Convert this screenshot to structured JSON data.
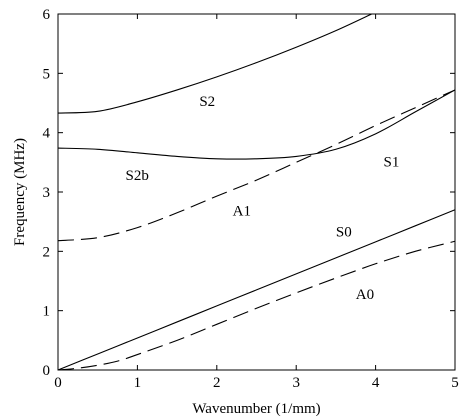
{
  "chart_data": {
    "type": "line",
    "xlabel": "Wavenumber (1/mm)",
    "ylabel": "Frequency (MHz)",
    "xlim": [
      0,
      5
    ],
    "ylim": [
      0,
      6
    ],
    "xticks": [
      "0",
      "1",
      "2",
      "3",
      "4",
      "5"
    ],
    "yticks": [
      "0",
      "1",
      "2",
      "3",
      "4",
      "5",
      "6"
    ],
    "grid": false,
    "line_color": "#000000",
    "series": [
      {
        "name": "S0",
        "dash": "solid",
        "x": [
          0,
          0.5,
          1,
          1.5,
          2,
          2.5,
          3,
          3.5,
          4,
          4.5,
          5
        ],
        "y": [
          0,
          0.27,
          0.54,
          0.81,
          1.08,
          1.35,
          1.62,
          1.89,
          2.16,
          2.43,
          2.7
        ]
      },
      {
        "name": "A0",
        "dash": "dashed",
        "x": [
          0,
          0.25,
          0.5,
          0.75,
          1,
          1.5,
          2,
          2.5,
          3,
          3.5,
          4,
          4.5,
          5
        ],
        "y": [
          0,
          0.03,
          0.08,
          0.15,
          0.26,
          0.5,
          0.77,
          1.04,
          1.3,
          1.55,
          1.79,
          2.0,
          2.17
        ]
      },
      {
        "name": "A1",
        "dash": "dashed",
        "x": [
          0,
          0.5,
          1,
          1.5,
          2,
          2.5,
          3,
          3.5,
          4,
          4.5,
          5
        ],
        "y": [
          2.18,
          2.23,
          2.4,
          2.65,
          2.93,
          3.2,
          3.5,
          3.8,
          4.12,
          4.42,
          4.72
        ]
      },
      {
        "name": "S1",
        "dash": "solid",
        "x": [
          0,
          0.5,
          1,
          1.5,
          2,
          2.5,
          3,
          3.5,
          4,
          4.5,
          5
        ],
        "y": [
          3.74,
          3.72,
          3.66,
          3.6,
          3.56,
          3.56,
          3.6,
          3.72,
          3.98,
          4.35,
          4.72
        ]
      },
      {
        "name": "S2",
        "dash": "solid",
        "x": [
          0,
          0.5,
          1,
          1.5,
          2,
          2.5,
          3,
          3.5,
          3.95
        ],
        "y": [
          4.33,
          4.36,
          4.52,
          4.72,
          4.94,
          5.18,
          5.44,
          5.72,
          6.0
        ]
      }
    ],
    "annotations": [
      {
        "text": "S2",
        "x": 1.78,
        "y": 4.45
      },
      {
        "text": "S2b",
        "x": 0.85,
        "y": 3.2
      },
      {
        "text": "S1",
        "x": 4.1,
        "y": 3.43
      },
      {
        "text": "A1",
        "x": 2.2,
        "y": 2.6
      },
      {
        "text": "S0",
        "x": 3.5,
        "y": 2.25
      },
      {
        "text": "A0",
        "x": 3.75,
        "y": 1.2
      }
    ]
  }
}
